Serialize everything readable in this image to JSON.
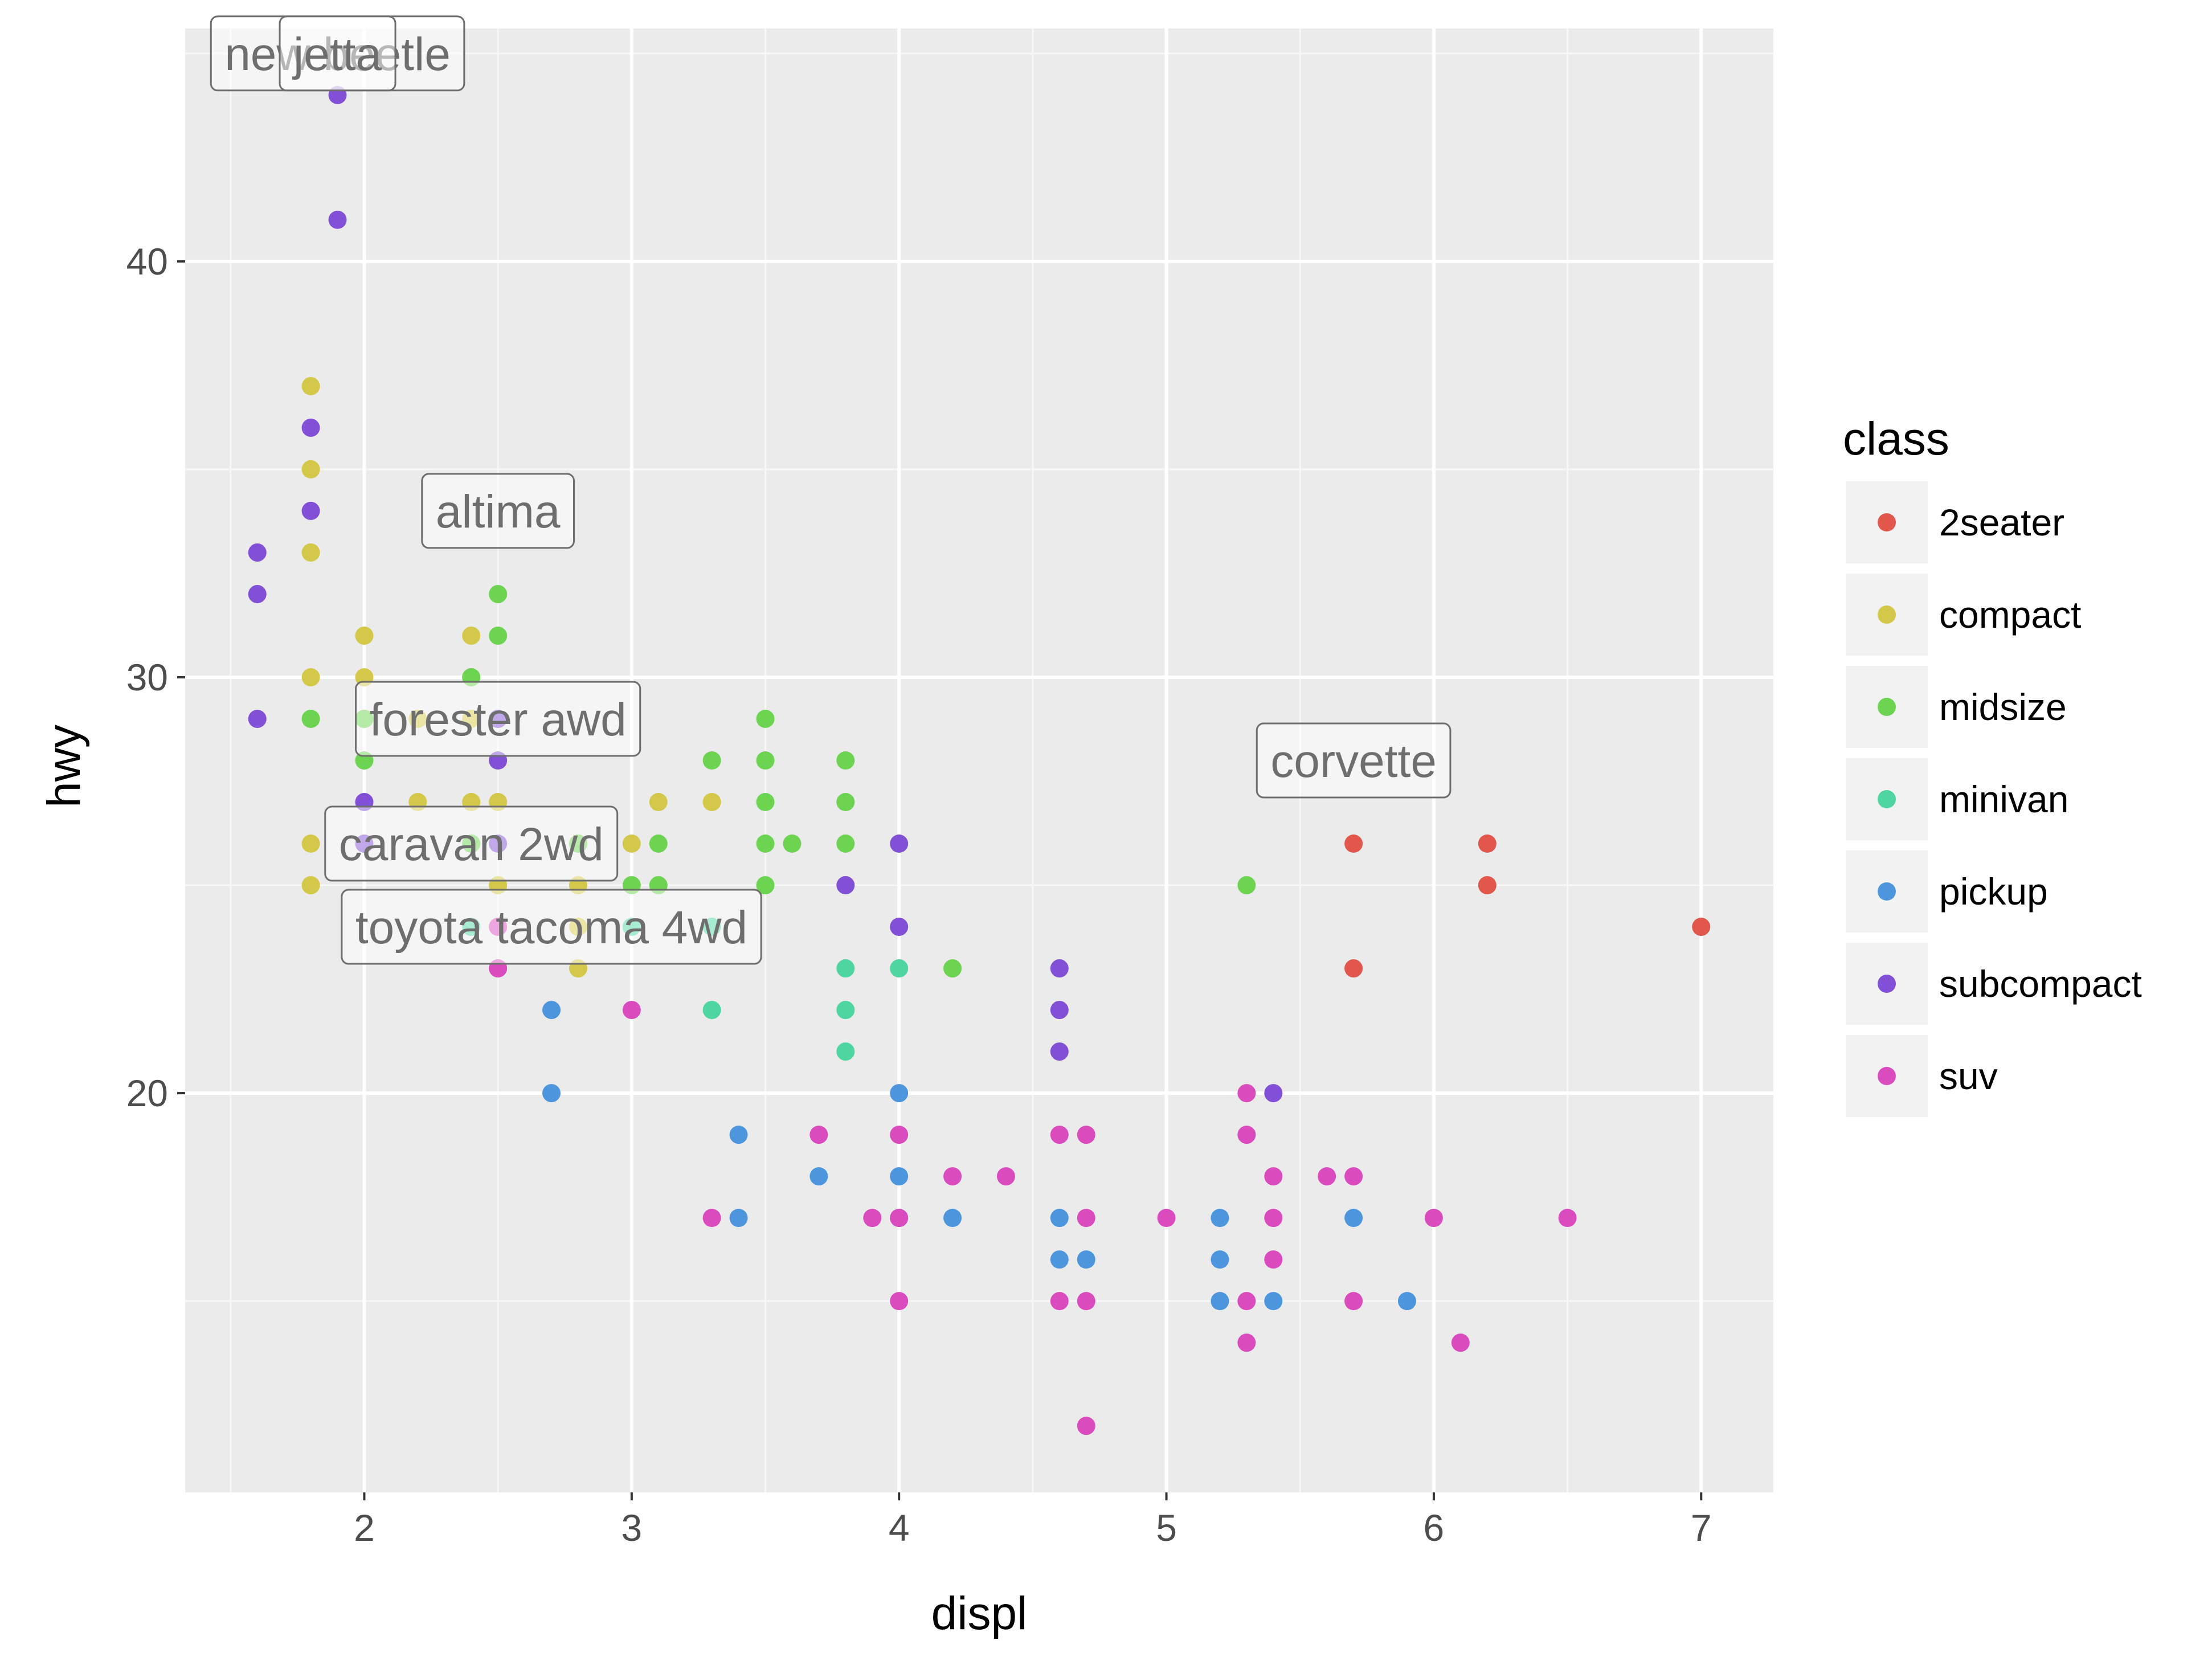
{
  "chart_data": {
    "type": "scatter",
    "xlabel": "displ",
    "ylabel": "hwy",
    "xlim": [
      1.33,
      7.27
    ],
    "ylim": [
      10.4,
      45.6
    ],
    "x_ticks": [
      2,
      3,
      4,
      5,
      6,
      7
    ],
    "y_ticks": [
      20,
      30,
      40
    ],
    "grid": true,
    "legend": {
      "title": "class",
      "position": "right"
    },
    "colors": {
      "2seater": "#E2574C",
      "compact": "#D4C84A",
      "midsize": "#6DD452",
      "minivan": "#4FD6A0",
      "pickup": "#4D96DE",
      "subcompact": "#8250D6",
      "suv": "#DA4CBE"
    },
    "series": [
      {
        "name": "2seater",
        "points": [
          [
            5.7,
            26
          ],
          [
            5.7,
            23
          ],
          [
            6.2,
            26
          ],
          [
            6.2,
            25
          ],
          [
            7.0,
            24
          ]
        ]
      },
      {
        "name": "compact",
        "points": [
          [
            1.8,
            37
          ],
          [
            1.8,
            35
          ],
          [
            1.8,
            33
          ],
          [
            1.8,
            30
          ],
          [
            1.8,
            26
          ],
          [
            1.8,
            25
          ],
          [
            2.0,
            31
          ],
          [
            2.0,
            30
          ],
          [
            2.0,
            29
          ],
          [
            2.2,
            29
          ],
          [
            2.2,
            27
          ],
          [
            2.4,
            31
          ],
          [
            2.4,
            30
          ],
          [
            2.4,
            29
          ],
          [
            2.4,
            27
          ],
          [
            2.4,
            26
          ],
          [
            2.5,
            29
          ],
          [
            2.5,
            27
          ],
          [
            2.5,
            25
          ],
          [
            2.8,
            26
          ],
          [
            2.8,
            25
          ],
          [
            2.8,
            24
          ],
          [
            2.8,
            23
          ],
          [
            3.0,
            26
          ],
          [
            3.1,
            27
          ],
          [
            3.3,
            27
          ]
        ]
      },
      {
        "name": "midsize",
        "points": [
          [
            1.8,
            29
          ],
          [
            2.0,
            29
          ],
          [
            2.0,
            28
          ],
          [
            2.4,
            30
          ],
          [
            2.4,
            26
          ],
          [
            2.5,
            32
          ],
          [
            2.5,
            31
          ],
          [
            2.5,
            29
          ],
          [
            2.8,
            26
          ],
          [
            3.0,
            25
          ],
          [
            3.1,
            26
          ],
          [
            3.1,
            25
          ],
          [
            3.3,
            28
          ],
          [
            3.5,
            29
          ],
          [
            3.5,
            28
          ],
          [
            3.5,
            27
          ],
          [
            3.5,
            26
          ],
          [
            3.5,
            25
          ],
          [
            3.6,
            26
          ],
          [
            3.8,
            28
          ],
          [
            3.8,
            27
          ],
          [
            3.8,
            26
          ],
          [
            4.2,
            23
          ],
          [
            5.3,
            25
          ]
        ]
      },
      {
        "name": "minivan",
        "points": [
          [
            2.4,
            24
          ],
          [
            3.0,
            24
          ],
          [
            3.3,
            24
          ],
          [
            3.3,
            22
          ],
          [
            3.8,
            23
          ],
          [
            3.8,
            22
          ],
          [
            3.8,
            21
          ],
          [
            4.0,
            23
          ]
        ]
      },
      {
        "name": "pickup",
        "points": [
          [
            2.7,
            22
          ],
          [
            2.7,
            20
          ],
          [
            3.4,
            19
          ],
          [
            3.4,
            17
          ],
          [
            3.7,
            18
          ],
          [
            4.0,
            20
          ],
          [
            4.0,
            18
          ],
          [
            4.0,
            17
          ],
          [
            4.2,
            17
          ],
          [
            4.6,
            17
          ],
          [
            4.6,
            16
          ],
          [
            4.7,
            16
          ],
          [
            5.2,
            17
          ],
          [
            5.2,
            16
          ],
          [
            5.2,
            15
          ],
          [
            5.4,
            15
          ],
          [
            5.7,
            17
          ],
          [
            5.9,
            15
          ]
        ]
      },
      {
        "name": "subcompact",
        "points": [
          [
            1.6,
            33
          ],
          [
            1.6,
            32
          ],
          [
            1.6,
            29
          ],
          [
            1.8,
            36
          ],
          [
            1.8,
            34
          ],
          [
            1.9,
            44
          ],
          [
            1.9,
            41
          ],
          [
            2.0,
            27
          ],
          [
            2.0,
            26
          ],
          [
            2.5,
            29
          ],
          [
            2.5,
            28
          ],
          [
            2.5,
            26
          ],
          [
            3.8,
            25
          ],
          [
            4.0,
            26
          ],
          [
            4.0,
            24
          ],
          [
            4.6,
            23
          ],
          [
            4.6,
            22
          ],
          [
            4.6,
            21
          ],
          [
            5.4,
            20
          ]
        ]
      },
      {
        "name": "suv",
        "points": [
          [
            2.5,
            24
          ],
          [
            2.5,
            23
          ],
          [
            3.0,
            22
          ],
          [
            3.3,
            17
          ],
          [
            3.7,
            19
          ],
          [
            3.9,
            17
          ],
          [
            4.0,
            19
          ],
          [
            4.0,
            17
          ],
          [
            4.0,
            15
          ],
          [
            4.2,
            18
          ],
          [
            4.4,
            18
          ],
          [
            4.6,
            19
          ],
          [
            4.6,
            15
          ],
          [
            4.7,
            19
          ],
          [
            4.7,
            17
          ],
          [
            4.7,
            15
          ],
          [
            4.7,
            12
          ],
          [
            5.0,
            17
          ],
          [
            5.3,
            20
          ],
          [
            5.3,
            19
          ],
          [
            5.3,
            15
          ],
          [
            5.3,
            14
          ],
          [
            5.4,
            18
          ],
          [
            5.4,
            17
          ],
          [
            5.4,
            16
          ],
          [
            5.6,
            18
          ],
          [
            5.7,
            18
          ],
          [
            5.7,
            15
          ],
          [
            6.0,
            17
          ],
          [
            6.1,
            14
          ],
          [
            6.5,
            17
          ]
        ]
      }
    ],
    "annotations": [
      {
        "text": "new beetle",
        "x": 1.9,
        "y": 45
      },
      {
        "text": "jetta",
        "x": 1.9,
        "y": 45
      },
      {
        "text": "altima",
        "x": 2.5,
        "y": 34
      },
      {
        "text": "forester awd",
        "x": 2.5,
        "y": 29
      },
      {
        "text": "caravan 2wd",
        "x": 2.4,
        "y": 26
      },
      {
        "text": "toyota tacoma 4wd",
        "x": 2.7,
        "y": 24
      },
      {
        "text": "corvette",
        "x": 5.7,
        "y": 28
      }
    ]
  }
}
